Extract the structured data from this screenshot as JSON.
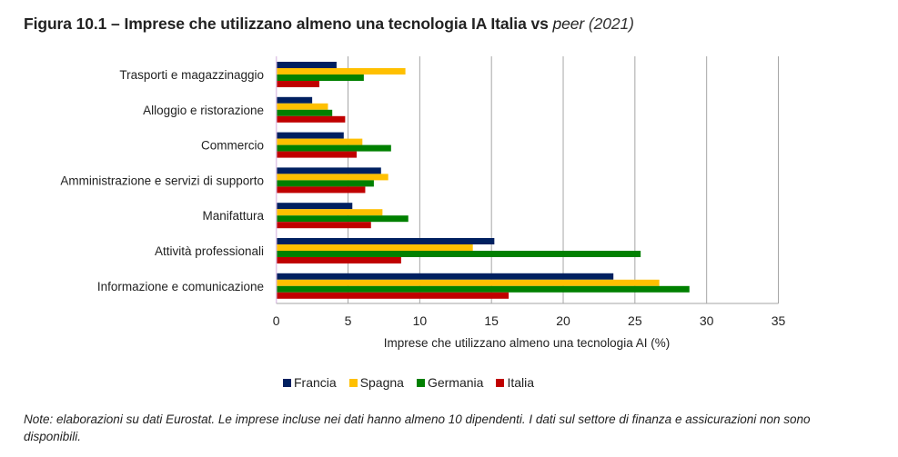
{
  "title": {
    "main": "Figura 10.1 – Imprese che utilizzano almeno una tecnologia IA Italia vs ",
    "italic": "peer",
    "year": " (2021)"
  },
  "chart_data": {
    "type": "bar",
    "orientation": "horizontal",
    "title": "Figura 10.1 – Imprese che utilizzano almeno una tecnologia IA Italia vs peer (2021)",
    "xlabel": "Imprese che utilizzano almeno una tecnologia AI (%)",
    "ylabel": "",
    "xlim": [
      0,
      35
    ],
    "xticks": [
      "0",
      "5",
      "10",
      "15",
      "20",
      "25",
      "30",
      "35"
    ],
    "grid": true,
    "legend_position": "bottom",
    "categories": [
      "Trasporti e magazzinaggio",
      "Alloggio e ristorazione",
      "Commercio",
      "Amministrazione e servizi di supporto",
      "Manifattura",
      "Attività professionali",
      "Informazione e comunicazione"
    ],
    "series": [
      {
        "name": "Francia",
        "color": "#002060",
        "values": [
          4.2,
          2.5,
          4.7,
          7.3,
          5.3,
          15.2,
          23.5
        ]
      },
      {
        "name": "Spagna",
        "color": "#FFC000",
        "values": [
          9.0,
          3.6,
          6.0,
          7.8,
          7.4,
          13.7,
          26.7
        ]
      },
      {
        "name": "Germania",
        "color": "#008000",
        "values": [
          6.1,
          3.9,
          8.0,
          6.8,
          9.2,
          25.4,
          28.8
        ]
      },
      {
        "name": "Italia",
        "color": "#C00000",
        "values": [
          3.0,
          4.8,
          5.6,
          6.2,
          6.6,
          8.7,
          16.2
        ]
      }
    ]
  },
  "note": "Note: elaborazioni su dati Eurostat. Le imprese incluse nei dati hanno almeno 10 dipendenti. I dati sul settore di finanza e assicurazioni non sono disponibili."
}
